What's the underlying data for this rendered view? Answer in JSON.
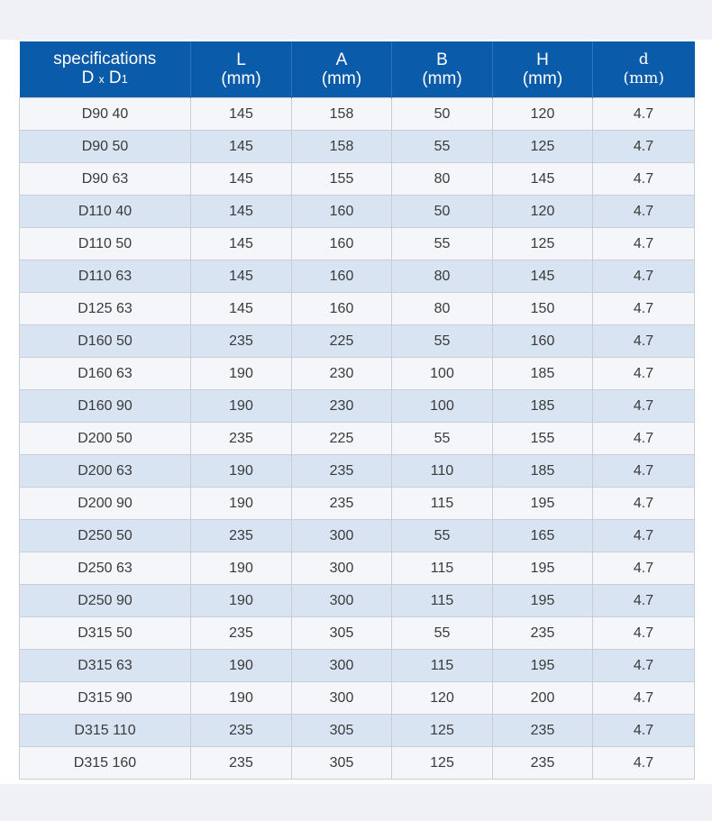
{
  "table": {
    "header": {
      "spec_line1": "specifications",
      "spec_d": "D",
      "spec_x": "x",
      "spec_d1": "D",
      "spec_sub1": "1",
      "columns": [
        {
          "name": "L",
          "unit": "(mm)"
        },
        {
          "name": "A",
          "unit": "(mm)"
        },
        {
          "name": "B",
          "unit": "(mm)"
        },
        {
          "name": "H",
          "unit": "(mm)"
        },
        {
          "name": "d",
          "unit": "(mm)"
        }
      ]
    },
    "rows": [
      {
        "spec": "D90 40",
        "L": "145",
        "A": "158",
        "B": "50",
        "H": "120",
        "d": "4.7"
      },
      {
        "spec": "D90 50",
        "L": "145",
        "A": "158",
        "B": "55",
        "H": "125",
        "d": "4.7"
      },
      {
        "spec": "D90 63",
        "L": "145",
        "A": "155",
        "B": "80",
        "H": "145",
        "d": "4.7"
      },
      {
        "spec": "D110 40",
        "L": "145",
        "A": "160",
        "B": "50",
        "H": "120",
        "d": "4.7"
      },
      {
        "spec": "D110 50",
        "L": "145",
        "A": "160",
        "B": "55",
        "H": "125",
        "d": "4.7"
      },
      {
        "spec": "D110 63",
        "L": "145",
        "A": "160",
        "B": "80",
        "H": "145",
        "d": "4.7"
      },
      {
        "spec": "D125 63",
        "L": "145",
        "A": "160",
        "B": "80",
        "H": "150",
        "d": "4.7"
      },
      {
        "spec": "D160 50",
        "L": "235",
        "A": "225",
        "B": "55",
        "H": "160",
        "d": "4.7"
      },
      {
        "spec": "D160 63",
        "L": "190",
        "A": "230",
        "B": "100",
        "H": "185",
        "d": "4.7"
      },
      {
        "spec": "D160 90",
        "L": "190",
        "A": "230",
        "B": "100",
        "H": "185",
        "d": "4.7"
      },
      {
        "spec": "D200 50",
        "L": "235",
        "A": "225",
        "B": "55",
        "H": "155",
        "d": "4.7"
      },
      {
        "spec": "D200 63",
        "L": "190",
        "A": "235",
        "B": "110",
        "H": "185",
        "d": "4.7"
      },
      {
        "spec": "D200 90",
        "L": "190",
        "A": "235",
        "B": "115",
        "H": "195",
        "d": "4.7"
      },
      {
        "spec": "D250 50",
        "L": "235",
        "A": "300",
        "B": "55",
        "H": "165",
        "d": "4.7"
      },
      {
        "spec": "D250 63",
        "L": "190",
        "A": "300",
        "B": "115",
        "H": "195",
        "d": "4.7"
      },
      {
        "spec": "D250 90",
        "L": "190",
        "A": "300",
        "B": "115",
        "H": "195",
        "d": "4.7"
      },
      {
        "spec": "D315 50",
        "L": "235",
        "A": "305",
        "B": "55",
        "H": "235",
        "d": "4.7"
      },
      {
        "spec": "D315 63",
        "L": "190",
        "A": "300",
        "B": "115",
        "H": "195",
        "d": "4.7"
      },
      {
        "spec": "D315 90",
        "L": "190",
        "A": "300",
        "B": "120",
        "H": "200",
        "d": "4.7"
      },
      {
        "spec": "D315 110",
        "L": "235",
        "A": "305",
        "B": "125",
        "H": "235",
        "d": "4.7"
      },
      {
        "spec": "D315 160",
        "L": "235",
        "A": "305",
        "B": "125",
        "H": "235",
        "d": "4.7"
      }
    ]
  },
  "colors": {
    "header_bg": "#0b5bab",
    "row_light": "#f5f6fa",
    "row_blue": "#d8e4f1",
    "text": "#3a3a3a"
  }
}
